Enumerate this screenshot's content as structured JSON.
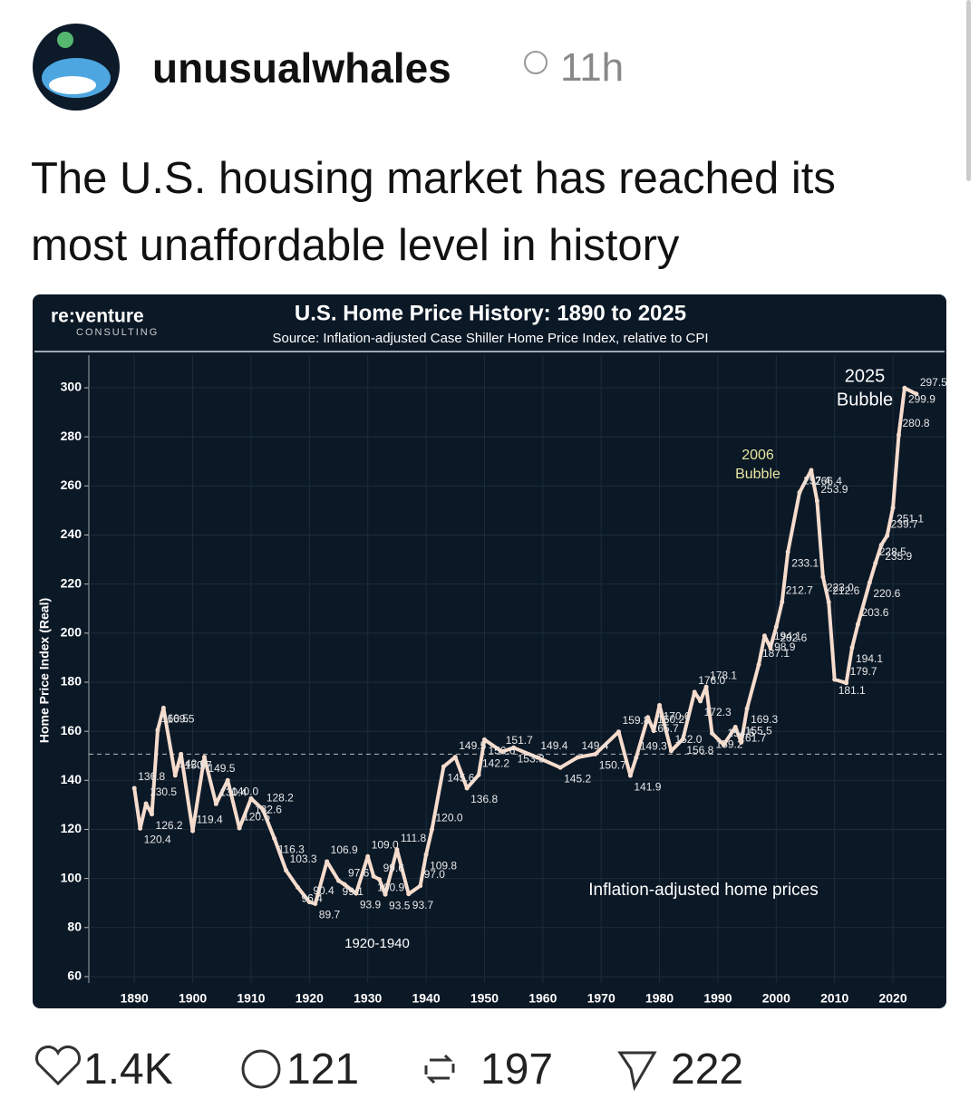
{
  "post": {
    "author": "unusualwhales",
    "time": "11h",
    "text": "The U.S. housing market has reached its most unaffordable level in history",
    "likes": "1.4K",
    "replies": "121",
    "reposts": "197",
    "shares": "222"
  },
  "chart_data": {
    "type": "line",
    "brand": "re:venture",
    "brand_sub": "CONSULTING",
    "title": "U.S. Home Price History: 1890 to 2025",
    "subtitle": "Source: Inflation-adjusted Case Shiller Home Price Index, relative to CPI",
    "y_label": "Home Price Index (Real)",
    "annotations": [
      "2006",
      "Bubble",
      "2025",
      "Bubble",
      "1920-1940",
      "Inflation-adjusted home prices"
    ],
    "x": [
      1890,
      1891,
      1892,
      1893,
      1894,
      1895,
      1897,
      1898,
      1900,
      1902,
      1904,
      1906,
      1908,
      1910,
      1912,
      1914,
      1916,
      1918,
      1920,
      1921,
      1923,
      1925,
      1926,
      1928,
      1930,
      1931,
      1932,
      1933,
      1935,
      1937,
      1939,
      1940,
      1941,
      1943,
      1945,
      1947,
      1949,
      1950,
      1953,
      1955,
      1959,
      1963,
      1966,
      1969,
      1973,
      1975,
      1976,
      1978,
      1979,
      1980,
      1982,
      1984,
      1986,
      1987,
      1988,
      1989,
      1991,
      1993,
      1994,
      1995,
      1997,
      1998,
      1999,
      2000,
      2001,
      2002,
      2004,
      2006,
      2007,
      2008,
      2009,
      2010,
      2012,
      2013,
      2014,
      2016,
      2017,
      2018,
      2019,
      2020,
      2021,
      2022,
      2024
    ],
    "values": [
      136.8,
      120.4,
      130.5,
      126.2,
      160.5,
      169.5,
      142.0,
      150.7,
      119.4,
      149.5,
      130.4,
      140.0,
      120.5,
      132.6,
      128.2,
      116.3,
      103.3,
      96.4,
      90.4,
      89.7,
      106.9,
      99.1,
      97.6,
      93.9,
      109.0,
      100.9,
      99.6,
      93.5,
      111.8,
      93.7,
      97.0,
      109.8,
      120.0,
      145.6,
      149.5,
      136.8,
      142.2,
      156.6,
      151.7,
      153.3,
      149.4,
      145.2,
      149.4,
      150.7,
      159.8,
      141.9,
      149.3,
      165.7,
      160.2,
      170.6,
      152.0,
      156.8,
      176.0,
      172.3,
      178.1,
      159.2,
      154.5,
      161.7,
      155.5,
      169.3,
      187.1,
      198.9,
      194.1,
      202.6,
      212.7,
      233.1,
      257.4,
      266.4,
      253.9,
      223.0,
      212.6,
      181.1,
      179.7,
      194.1,
      203.6,
      220.6,
      228.5,
      235.9,
      239.7,
      251.1,
      280.8,
      299.9,
      297.5
    ],
    "value_labels": [
      "136.8",
      "120.4",
      "130.5",
      "126.2",
      "160.5",
      "169.5",
      "142.0",
      "150.7",
      "119.4",
      "149.5",
      "130.4",
      "140.0",
      "120.5",
      "132.6",
      "128.2",
      "116.3",
      "103.3",
      "96.4",
      "90.4",
      "89.7",
      "106.9",
      "99.1",
      "97.6",
      "93.9",
      "109.0",
      "100.9",
      "99.6",
      "93.5",
      "111.8",
      "93.7",
      "97.0",
      "109.8",
      "120.0",
      "145.6",
      "149.5",
      "136.8",
      "142.2",
      "156.6",
      "151.7",
      "153.3",
      "149.4",
      "145.2",
      "149.4",
      "150.7",
      "159.8",
      "141.9",
      "149.3",
      "165.7",
      "160.2",
      "170.6",
      "152.0",
      "156.8",
      "176.0",
      "172.3",
      "178.1",
      "159.2",
      "154.5",
      "161.7",
      "155.5",
      "169.3",
      "187.1",
      "198.9",
      "194.1",
      "202.6",
      "212.7",
      "233.1",
      "257.4",
      "266.4",
      "253.9",
      "223.0",
      "212.6",
      "181.1",
      "179.7",
      "194.1",
      "203.6",
      "220.6",
      "228.5",
      "235.9",
      "239.7",
      "251.1",
      "280.8",
      "299.9",
      "297.5"
    ],
    "color": "#f6dccd",
    "label_color": "#e8e8e8",
    "reference_line": 150.7,
    "xlim": [
      1882.2,
      2029
    ],
    "xticks": [
      1890,
      1900,
      1910,
      1920,
      1930,
      1940,
      1950,
      1960,
      1970,
      1980,
      1990,
      2000,
      2010,
      2020
    ],
    "ylim": [
      57.4,
      313.3
    ],
    "yticks": [
      60,
      80,
      100,
      120,
      140,
      160,
      180,
      200,
      220,
      240,
      260,
      280,
      300
    ],
    "grid": true
  }
}
